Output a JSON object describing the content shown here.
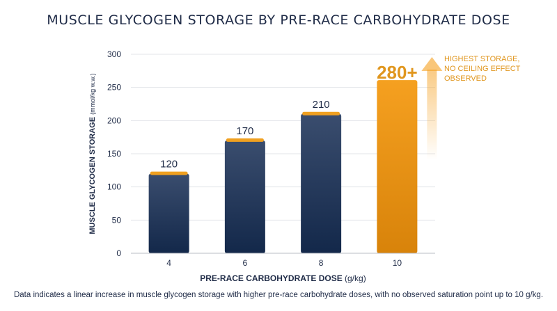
{
  "title": "MUSCLE GLYCOGEN STORAGE BY PRE-RACE CARBOHYDRATE DOSE",
  "footnote": "Data indicates a linear increase in muscle glycogen storage with higher pre-race carbohydrate doses, with no observed saturation point up to 10 g/kg.",
  "chart_data": {
    "type": "bar",
    "title": "MUSCLE GLYCOGEN STORAGE BY PRE-RACE CARBOHYDRATE DOSE",
    "xlabel": "PRE-RACE CARBOHYDRATE DOSE",
    "xlabel_unit": "(g/kg)",
    "ylabel": "MUSCLE GLYCOGEN STORAGE",
    "ylabel_unit": "(mmol/kg w.w.)",
    "categories": [
      "4",
      "6",
      "8",
      "10"
    ],
    "values": [
      120,
      170,
      210,
      280
    ],
    "data_labels": [
      "120",
      "170",
      "210",
      "280+"
    ],
    "ylim": [
      0,
      300
    ],
    "yticks": [
      0,
      50,
      100,
      150,
      200,
      250,
      300
    ],
    "grid": true,
    "highlight_index": 3,
    "annotation": [
      "HIGHEST STORAGE,",
      "NO CEILING EFFECT",
      "OBSERVED"
    ],
    "colors": {
      "bar_top": "#3a4d6e",
      "bar_bottom": "#13284a",
      "highlight_top": "#f5a020",
      "highlight_bottom": "#d8830a",
      "cap": "#f0a020",
      "annotation": "#e0961e",
      "grid": "#e3e5e9",
      "text": "#1f2b47"
    }
  }
}
